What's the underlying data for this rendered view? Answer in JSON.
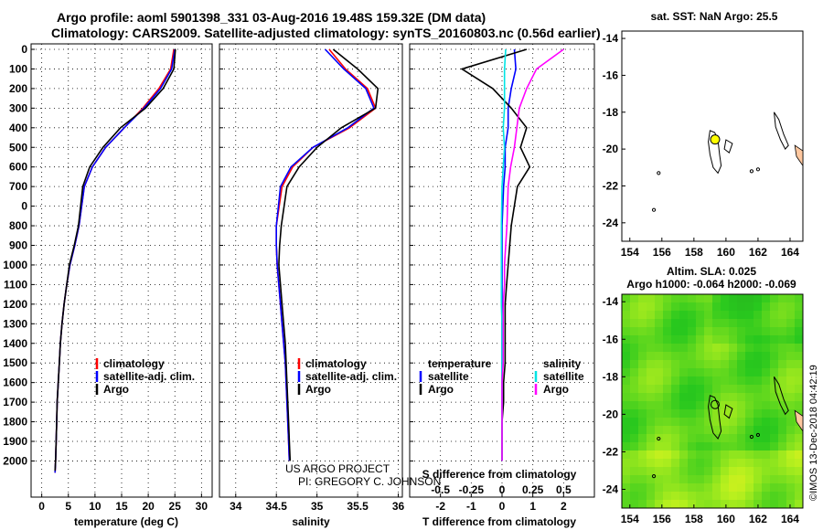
{
  "header": {
    "line1": "Argo profile: aoml 5901398_331 03-Aug-2016 19.48S 159.32E (DM data)",
    "line2": "Climatology: CARS2009. Satellite-adjusted climatology: synTS_20160803.nc (0.56d earlier)"
  },
  "colors": {
    "climatology": "#ff0000",
    "satellite": "#0000ff",
    "argo": "#000000",
    "sal_satellite": "#00e5e5",
    "sal_argo": "#ff00ff",
    "land": "#ffc8a0",
    "argo_dot": "#ffff00"
  },
  "depth_ticks": [
    "0",
    "100",
    "200",
    "300",
    "400",
    "500",
    "600",
    "700",
    "0",
    "800",
    "900",
    "1000",
    "1100",
    "1200",
    "1300",
    "1400",
    "1500",
    "1600",
    "1700",
    "1800",
    "1900",
    "2000"
  ],
  "chart_data": [
    {
      "id": "temperature",
      "type": "line",
      "xlabel": "temperature (deg C)",
      "xticks": [
        "0",
        "5",
        "10",
        "15",
        "20",
        "25",
        "30"
      ],
      "xlim": [
        -2,
        32
      ],
      "ylim": [
        2120,
        -30
      ],
      "legend": {
        "climatology": "climatology",
        "satellite": "satellite-adj. clim.",
        "argo": "Argo"
      },
      "series": [
        {
          "name": "climatology",
          "x": [
            24.8,
            24.2,
            22.0,
            19.0,
            15.5,
            12.0,
            9.5,
            8.0,
            7.0,
            6.2,
            5.3,
            4.7,
            4.2,
            3.8,
            3.5,
            3.3,
            3.1,
            2.9,
            2.8,
            2.7,
            2.6,
            2.5
          ],
          "y": [
            0,
            100,
            200,
            300,
            400,
            500,
            600,
            700,
            800,
            900,
            1000,
            1100,
            1200,
            1300,
            1400,
            1500,
            1600,
            1700,
            1800,
            1900,
            2000,
            2060
          ]
        },
        {
          "name": "satellite",
          "x": [
            25.0,
            24.4,
            22.3,
            19.2,
            15.5,
            12.0,
            9.5,
            8.0,
            7.0,
            6.2,
            5.3,
            4.7,
            4.2,
            3.8,
            3.5,
            3.3,
            3.1,
            2.9,
            2.8,
            2.7,
            2.6,
            2.5
          ],
          "y": [
            0,
            100,
            200,
            300,
            400,
            500,
            600,
            700,
            800,
            900,
            1000,
            1100,
            1200,
            1300,
            1400,
            1500,
            1600,
            1700,
            1800,
            1900,
            2000,
            2060
          ]
        },
        {
          "name": "argo",
          "x": [
            25.1,
            24.8,
            22.8,
            19.5,
            14.8,
            11.5,
            9.0,
            7.7,
            6.9,
            6.1,
            5.2,
            4.7,
            4.2,
            3.8,
            3.5,
            3.3,
            3.1,
            2.9,
            2.8,
            2.7,
            2.6,
            2.5
          ],
          "y": [
            0,
            100,
            200,
            300,
            400,
            500,
            600,
            700,
            800,
            900,
            1000,
            1100,
            1200,
            1300,
            1400,
            1500,
            1600,
            1700,
            1800,
            1900,
            2000,
            2050
          ]
        }
      ]
    },
    {
      "id": "salinity",
      "type": "line",
      "xlabel": "salinity",
      "xticks": [
        "34",
        "34.5",
        "35",
        "35.5",
        "36"
      ],
      "xlim": [
        33.8,
        36.05
      ],
      "ylim": [
        2120,
        -30
      ],
      "legend": {
        "climatology": "climatology",
        "satellite": "satellite-adj. clim.",
        "argo": "Argo"
      },
      "annotation": [
        "US ARGO PROJECT",
        "PI: GREGORY C. JOHNSON"
      ],
      "series": [
        {
          "name": "climatology",
          "x": [
            35.15,
            35.35,
            35.62,
            35.72,
            35.4,
            34.95,
            34.7,
            34.57,
            34.5,
            34.5,
            34.51,
            34.53,
            34.55,
            34.57,
            34.59,
            34.61,
            34.62,
            34.63,
            34.64,
            34.65,
            34.66
          ],
          "y": [
            0,
            100,
            200,
            300,
            400,
            500,
            600,
            700,
            800,
            900,
            1000,
            1100,
            1200,
            1300,
            1400,
            1500,
            1600,
            1700,
            1800,
            1900,
            2000
          ]
        },
        {
          "name": "satellite",
          "x": [
            35.1,
            35.33,
            35.6,
            35.7,
            35.38,
            34.95,
            34.68,
            34.55,
            34.5,
            34.5,
            34.51,
            34.53,
            34.55,
            34.57,
            34.59,
            34.61,
            34.62,
            34.63,
            34.64,
            34.65,
            34.66
          ],
          "y": [
            0,
            100,
            200,
            300,
            400,
            500,
            600,
            700,
            800,
            900,
            1000,
            1100,
            1200,
            1300,
            1400,
            1500,
            1600,
            1700,
            1800,
            1900,
            2000
          ]
        },
        {
          "name": "argo",
          "x": [
            35.2,
            35.5,
            35.75,
            35.72,
            35.3,
            35.0,
            34.78,
            34.63,
            34.56,
            34.54,
            34.53,
            34.55,
            34.57,
            34.59,
            34.61,
            34.62,
            34.63,
            34.64,
            34.65,
            34.66,
            34.67
          ],
          "y": [
            0,
            100,
            200,
            300,
            400,
            500,
            600,
            700,
            800,
            900,
            1000,
            1100,
            1200,
            1300,
            1400,
            1500,
            1600,
            1700,
            1800,
            1900,
            2000
          ]
        }
      ]
    },
    {
      "id": "difference",
      "type": "line",
      "xlabel": "T difference from climatology",
      "xlabel_top": "S difference from climatology",
      "xticks": [
        "-2",
        "-1",
        "0",
        "1",
        "2"
      ],
      "xticks_top": [
        "-0.5",
        "-0.25",
        "0",
        "0.25",
        "0.5"
      ],
      "xlim": [
        -3,
        3
      ],
      "ylim": [
        2120,
        -30
      ],
      "legend": {
        "temperature_title": "temperature",
        "salinity_title": "salinity",
        "satellite": "satellite",
        "argo": "Argo"
      },
      "series": [
        {
          "name": "T satellite",
          "x": [
            0.4,
            0.45,
            0.3,
            0.2,
            0.2,
            0.1,
            0.1,
            0.05,
            0.0,
            0.0,
            0.0,
            0.0,
            0.0,
            0.0,
            0.0,
            0.0,
            0.0,
            0.0,
            0.0,
            0.0,
            0.0
          ],
          "y": [
            0,
            100,
            200,
            300,
            400,
            500,
            600,
            700,
            800,
            900,
            1000,
            1100,
            1200,
            1300,
            1400,
            1500,
            1600,
            1700,
            1800,
            1900,
            2000
          ]
        },
        {
          "name": "T argo",
          "x": [
            0.8,
            -1.3,
            -0.3,
            0.3,
            0.8,
            0.6,
            0.9,
            0.5,
            0.3,
            0.25,
            0.2,
            0.15,
            0.1,
            0.1,
            0.1,
            0.1,
            0.05,
            0.05,
            0.0,
            0.0,
            0.0
          ],
          "y": [
            0,
            100,
            200,
            300,
            400,
            500,
            600,
            700,
            800,
            900,
            1000,
            1100,
            1200,
            1300,
            1400,
            1500,
            1600,
            1700,
            1800,
            1900,
            2000
          ]
        },
        {
          "name": "S satellite",
          "x": [
            0.03,
            0.02,
            0.02,
            0.02,
            0.01,
            0.02,
            0.01,
            0.0,
            -0.005,
            -0.005,
            -0.005,
            -0.005,
            -0.005,
            0.0,
            0.0,
            0.0,
            0.0,
            0.0,
            0.0,
            0.0,
            0.0
          ],
          "y": [
            0,
            100,
            200,
            300,
            400,
            500,
            600,
            700,
            800,
            900,
            1000,
            1100,
            1200,
            1300,
            1400,
            1500,
            1600,
            1700,
            1800,
            1900,
            2000
          ]
        },
        {
          "name": "S argo",
          "x": [
            0.5,
            0.28,
            0.2,
            0.14,
            0.12,
            0.1,
            0.07,
            0.05,
            0.04,
            0.03,
            0.02,
            0.02,
            0.01,
            0.01,
            0.01,
            0.01,
            0.0,
            0.0,
            0.0,
            0.0,
            0.0
          ],
          "y": [
            0,
            100,
            200,
            300,
            400,
            500,
            600,
            700,
            800,
            900,
            1000,
            1100,
            1200,
            1300,
            1400,
            1500,
            1600,
            1700,
            1800,
            1900,
            2000
          ]
        }
      ]
    },
    {
      "id": "sst_map",
      "type": "map",
      "title": "sat. SST: NaN Argo: 25.5",
      "xticks": [
        "154",
        "156",
        "158",
        "160",
        "162",
        "164"
      ],
      "yticks": [
        "-14",
        "-16",
        "-18",
        "-20",
        "-22",
        "-24"
      ],
      "xlim": [
        153.5,
        164.8
      ],
      "ylim": [
        -25,
        -13.6
      ],
      "argo_position": {
        "lon": 159.32,
        "lat": -19.48
      }
    },
    {
      "id": "sla_map",
      "type": "heatmap",
      "title1": "Altim. SLA: 0.025",
      "title2": "Argo h1000: -0.064 h2000: -0.069",
      "xticks": [
        "154",
        "156",
        "158",
        "160",
        "162",
        "164"
      ],
      "yticks": [
        "-14",
        "-16",
        "-18",
        "-20",
        "-22",
        "-24"
      ],
      "xlim": [
        153.5,
        164.8
      ],
      "ylim": [
        -25,
        -13.6
      ],
      "argo_position": {
        "lon": 159.32,
        "lat": -19.48
      }
    }
  ],
  "credit": "©IMOS 13-Dec-2018 04:42:19"
}
